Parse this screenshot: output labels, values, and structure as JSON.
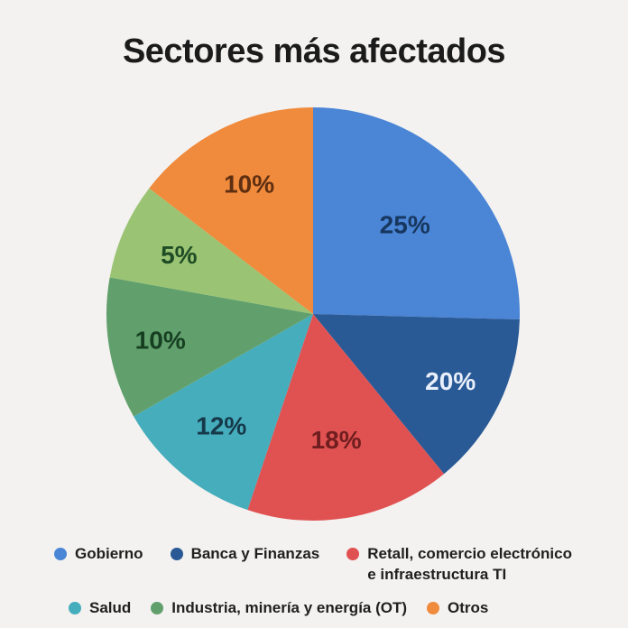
{
  "title": "Sectores más afectados",
  "chart_data": {
    "type": "pie",
    "title": "Sectores más afectados",
    "unit": "percent",
    "direction": "clockwise",
    "start_angle_deg": 0,
    "legend_position": "bottom",
    "slices": [
      {
        "name": "Gobierno",
        "value": 25,
        "label": "25%",
        "color": "#4a85d6",
        "label_color": "#17375e",
        "label_r": 0.62,
        "render_sweep_deg": 91.5
      },
      {
        "name": "Banca y Finanzas",
        "value": 20,
        "label": "20%",
        "color": "#2a5a96",
        "label_color": "#e9effb",
        "label_r": 0.74,
        "render_sweep_deg": 49.2
      },
      {
        "name": "Retall, comercio electrónico e infraestructura TI",
        "value": 18,
        "label": "18%",
        "color": "#e05252",
        "label_color": "#6f1d1e",
        "label_r": 0.62,
        "render_sweep_deg": 57.8
      },
      {
        "name": "Salud",
        "value": 12,
        "label": "12%",
        "color": "#45adbc",
        "label_color": "#16394a",
        "label_r": 0.7,
        "render_sweep_deg": 41.8
      },
      {
        "name": "Industria, minería y energía (OT)",
        "value": 10,
        "label": "10%",
        "color": "#61a06c",
        "label_color": "#163f21",
        "label_r": 0.75,
        "render_sweep_deg": 39.9
      },
      {
        "name": "",
        "value": 5,
        "label": "5%",
        "color": "#9ac473",
        "label_color": "#1e4b25",
        "label_r": 0.71,
        "render_sweep_deg": 27.3
      },
      {
        "name": "Otros",
        "value": 10,
        "label": "10%",
        "color": "#f08a3c",
        "label_color": "#5f2f12",
        "label_r": 0.7,
        "render_sweep_deg": 52.5
      }
    ],
    "legend_rows": [
      [
        {
          "label": "Gobierno",
          "color": "#4a85d6",
          "wrap": false
        },
        {
          "label": "Banca y Finanzas",
          "color": "#2a5a96",
          "wrap": false
        },
        {
          "label": "Retall, comercio electrónico e infraestructura TI",
          "color": "#e05252",
          "wrap": true
        }
      ],
      [
        {
          "label": "Salud",
          "color": "#45adbc",
          "wrap": false
        },
        {
          "label": "Industria, minería y energía (OT)",
          "color": "#61a06c",
          "wrap": false
        },
        {
          "label": "Otros",
          "color": "#f08a3c",
          "wrap": false
        }
      ]
    ]
  }
}
